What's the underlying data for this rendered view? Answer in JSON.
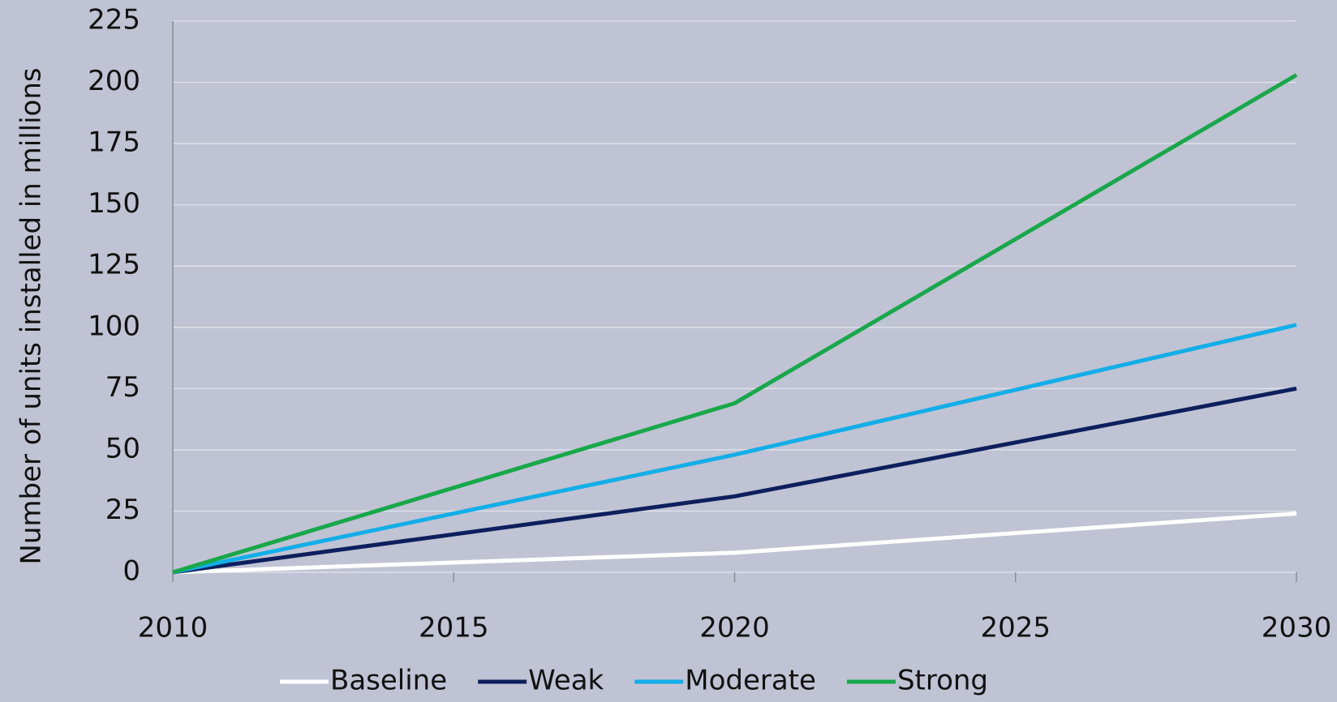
{
  "chart_data": {
    "type": "line",
    "y_label": "Number of units installed in millions",
    "x": [
      2010,
      2020,
      2030
    ],
    "series": [
      {
        "name": "Baseline",
        "color": "#ffffff",
        "values": [
          0,
          8,
          24
        ]
      },
      {
        "name": "Weak",
        "color": "#0d1f5c",
        "values": [
          0,
          31,
          75
        ]
      },
      {
        "name": "Moderate",
        "color": "#12aee8",
        "values": [
          0,
          48,
          101
        ]
      },
      {
        "name": "Strong",
        "color": "#17a84a",
        "values": [
          0,
          69,
          203
        ]
      }
    ],
    "xlim": [
      2010,
      2030
    ],
    "xticks": [
      2010,
      2015,
      2020,
      2025,
      2030
    ],
    "ylim": [
      0,
      225
    ],
    "yticks": [
      0,
      25,
      50,
      75,
      100,
      125,
      150,
      175,
      200,
      225
    ],
    "grid": true,
    "legend": "bottom"
  }
}
